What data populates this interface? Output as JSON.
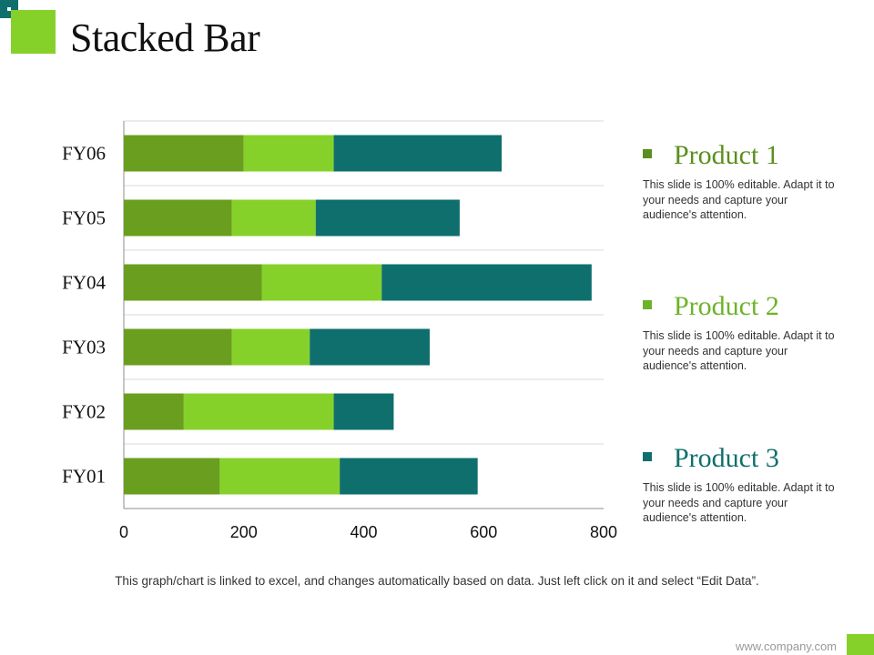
{
  "slide": {
    "title": "Stacked Bar",
    "footnote": "This graph/chart is linked to excel, and changes automatically based on data. Just left click on it and select “Edit Data”.",
    "footer_url": "www.company.com"
  },
  "colors": {
    "product1": "#6a9e1f",
    "product2": "#85d12a",
    "product3": "#0e6f6d",
    "accent_green": "#85d12a",
    "accent_teal": "#0e6f6d"
  },
  "legend": [
    {
      "name": "Product 1",
      "color": "#5a8f1d",
      "description": "This slide is 100% editable. Adapt it to your needs and capture your audience's attention."
    },
    {
      "name": "Product 2",
      "color": "#6db32a",
      "description": "This slide is 100% editable. Adapt it to your needs and capture your audience's attention."
    },
    {
      "name": "Product 3",
      "color": "#0e6f6d",
      "description": "This slide is 100% editable. Adapt it to your needs and capture your audience's attention."
    }
  ],
  "chart_data": {
    "type": "bar",
    "orientation": "horizontal",
    "stacked": true,
    "categories": [
      "FY06",
      "FY05",
      "FY04",
      "FY03",
      "FY02",
      "FY01"
    ],
    "series": [
      {
        "name": "Product 1",
        "values": [
          200,
          180,
          230,
          180,
          100,
          160
        ]
      },
      {
        "name": "Product 2",
        "values": [
          150,
          140,
          200,
          130,
          250,
          200
        ]
      },
      {
        "name": "Product 3",
        "values": [
          280,
          240,
          350,
          200,
          100,
          230
        ]
      }
    ],
    "xlim": [
      0,
      800
    ],
    "xticks": [
      "0",
      "200",
      "400",
      "600",
      "800"
    ],
    "grid": true
  }
}
